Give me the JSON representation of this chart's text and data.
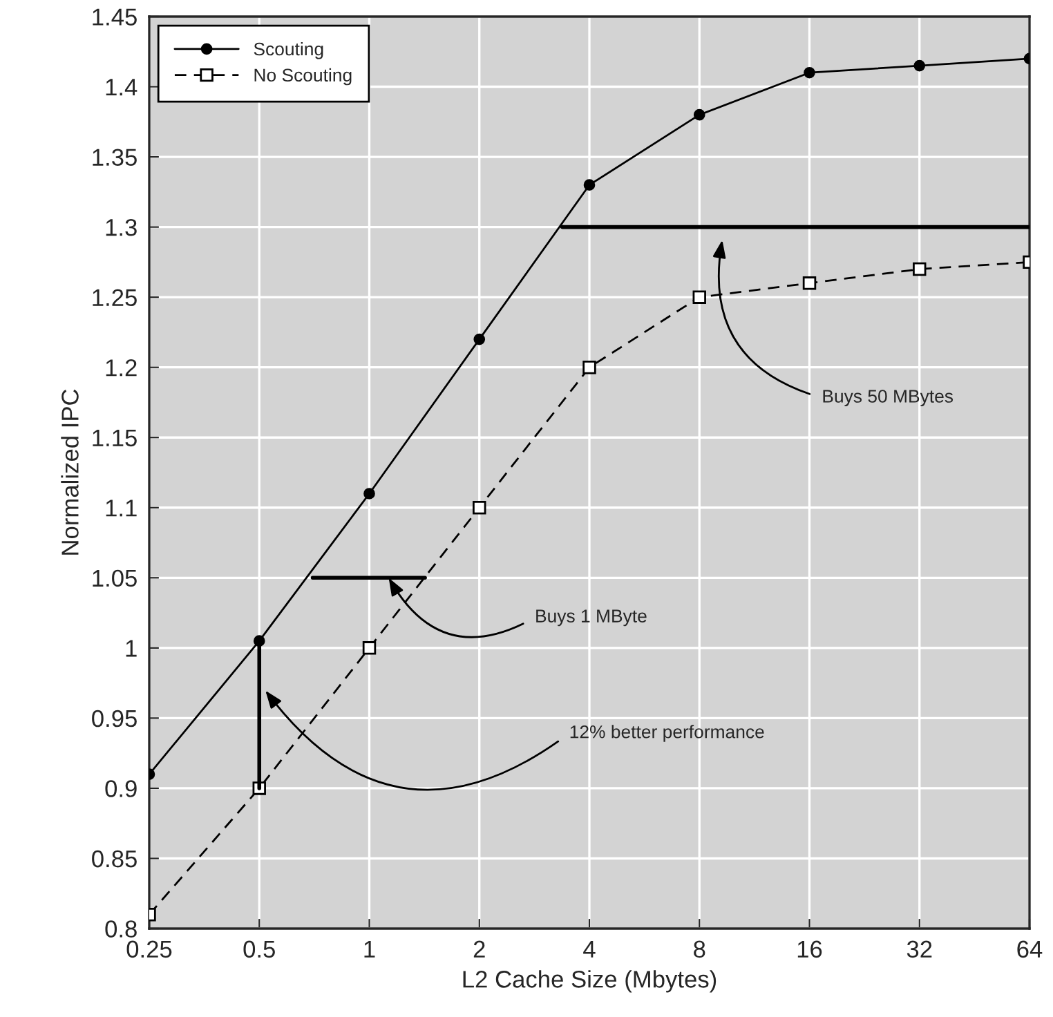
{
  "chart_data": {
    "type": "line",
    "xlabel": "L2 Cache Size (Mbytes)",
    "ylabel": "Normalized IPC",
    "x": [
      0.25,
      0.5,
      1,
      2,
      4,
      8,
      16,
      32,
      64
    ],
    "series": [
      {
        "name": "Scouting",
        "color": "#000000",
        "marker": "circle",
        "line_style": "solid",
        "values": [
          0.91,
          1.005,
          1.11,
          1.22,
          1.33,
          1.38,
          1.41,
          1.415,
          1.42
        ]
      },
      {
        "name": "No Scouting",
        "color": "#000000",
        "marker": "square",
        "line_style": "dashed",
        "values": [
          0.81,
          0.9,
          1.0,
          1.1,
          1.2,
          1.25,
          1.26,
          1.27,
          1.275
        ]
      },
      {
        "type": "line",
        "color": "#000000",
        "marker": "none",
        "line_style": "solid",
        "x": [
          0.5,
          0.5
        ],
        "values": [
          0.9,
          1.005
        ]
      },
      {
        "type": "line",
        "color": "#000000",
        "marker": "none",
        "line_style": "solid",
        "x": [
          0.7,
          1.42
        ],
        "values": [
          1.05,
          1.05
        ]
      },
      {
        "type": "line",
        "color": "#000000",
        "marker": "none",
        "line_style": "solid",
        "x": [
          3.37,
          64
        ],
        "values": [
          1.3,
          1.3
        ]
      }
    ],
    "log": "x",
    "xlim": [
      0.25,
      64
    ],
    "xticks": [
      0.25,
      0.5,
      1,
      2,
      4,
      8,
      16,
      32,
      64
    ],
    "ylim": [
      0.8,
      1.45
    ],
    "yticks": [
      0.8,
      0.85,
      0.9,
      0.95,
      1,
      1.05,
      1.1,
      1.15,
      1.2,
      1.25,
      1.3,
      1.35,
      1.4,
      1.45
    ],
    "grid": true,
    "legend": "top left",
    "annotations": [
      "Buys 50 MBytes",
      {
        "text": "Buys 1 MByte",
        "x": 1.13,
        "y": 1.05
      },
      "12% better performance"
    ]
  }
}
